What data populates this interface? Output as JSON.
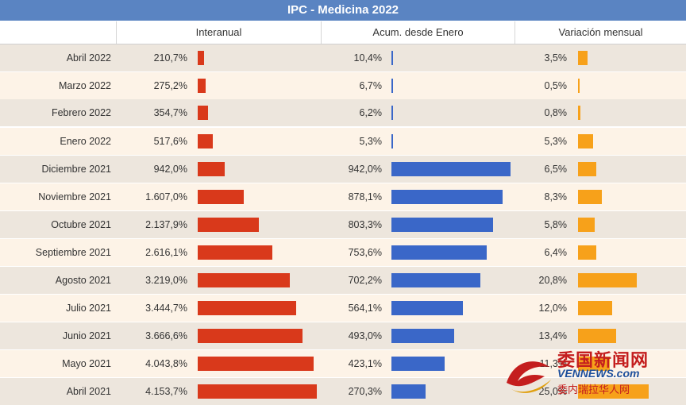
{
  "title": "IPC - Medicina 2022",
  "headers": {
    "interanual": "Interanual",
    "acum": "Acum. desde Enero",
    "mensual": "Variación mensual"
  },
  "colors": {
    "title_bg": "#5a84c2",
    "interanual": "#d9391b",
    "acum": "#3a67c8",
    "mensual": "#f7a11a"
  },
  "chart_data": {
    "type": "bar",
    "title": "IPC - Medicina 2022",
    "categories": [
      "Abril 2022",
      "Marzo 2022",
      "Febrero 2022",
      "Enero 2022",
      "Diciembre 2021",
      "Noviembre 2021",
      "Octubre 2021",
      "Septiembre 2021",
      "Agosto 2021",
      "Julio 2021",
      "Junio 2021",
      "Mayo 2021",
      "Abril 2021"
    ],
    "series": [
      {
        "name": "Interanual",
        "values": [
          210.7,
          275.2,
          354.7,
          517.6,
          942.0,
          1607.0,
          2137.9,
          2616.1,
          3219.0,
          3444.7,
          3666.6,
          4043.8,
          4153.7
        ],
        "labels": [
          "210,7%",
          "275,2%",
          "354,7%",
          "517,6%",
          "942,0%",
          "1.607,0%",
          "2.137,9%",
          "2.616,1%",
          "3.219,0%",
          "3.444,7%",
          "3.666,6%",
          "4.043,8%",
          "4.153,7%"
        ]
      },
      {
        "name": "Acum. desde Enero",
        "values": [
          10.4,
          6.7,
          6.2,
          5.3,
          942.0,
          878.1,
          803.3,
          753.6,
          702.2,
          564.1,
          493.0,
          423.1,
          270.3
        ],
        "labels": [
          "10,4%",
          "6,7%",
          "6,2%",
          "5,3%",
          "942,0%",
          "878,1%",
          "803,3%",
          "753,6%",
          "702,2%",
          "564,1%",
          "493,0%",
          "423,1%",
          "270,3%"
        ]
      },
      {
        "name": "Variación mensual",
        "values": [
          3.5,
          0.5,
          0.8,
          5.3,
          6.5,
          8.3,
          5.8,
          6.4,
          20.8,
          12.0,
          13.4,
          11.3,
          25.0
        ],
        "labels": [
          "3,5%",
          "0,5%",
          "0,8%",
          "5,3%",
          "6,5%",
          "8,3%",
          "5,8%",
          "6,4%",
          "20,8%",
          "12,0%",
          "13,4%",
          "11,3%",
          "25,0%"
        ]
      }
    ]
  },
  "watermark": {
    "line1": "委国新闻网",
    "line2": "VENNEWS.com",
    "line3": "委内瑞拉华人网"
  }
}
